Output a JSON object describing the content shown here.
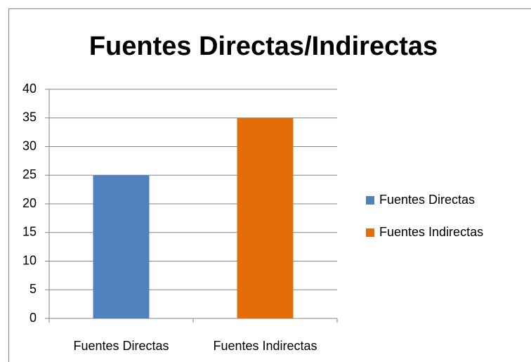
{
  "chart_data": {
    "type": "bar",
    "title": "Fuentes Directas/Indirectas",
    "categories": [
      "Fuentes Directas",
      "Fuentes Indirectas"
    ],
    "values": [
      25,
      35
    ],
    "colors": [
      "#4f81bd",
      "#e46c0a"
    ],
    "ylim": [
      0,
      40
    ],
    "yticks": [
      0,
      5,
      10,
      15,
      20,
      25,
      30,
      35,
      40
    ],
    "grid": true,
    "legend": "right"
  }
}
